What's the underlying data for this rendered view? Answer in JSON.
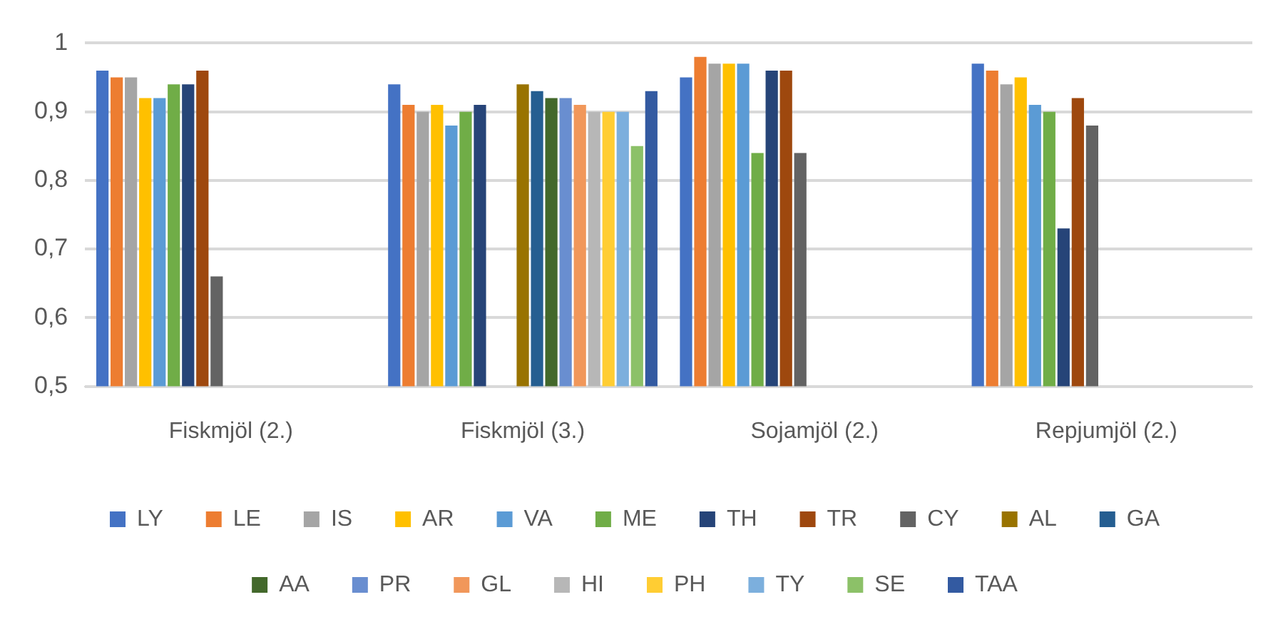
{
  "chart_data": {
    "type": "bar",
    "categories": [
      "Fiskmjöl (2.)",
      "Fiskmjöl (3.)",
      "Sojamjöl (2.)",
      "Repjumjöl (2.)"
    ],
    "ylim": [
      0.5,
      1
    ],
    "yticks": [
      {
        "value": 0.5,
        "label": "0,5"
      },
      {
        "value": 0.6,
        "label": "0,6"
      },
      {
        "value": 0.7,
        "label": "0,7"
      },
      {
        "value": 0.8,
        "label": "0,8"
      },
      {
        "value": 0.9,
        "label": "0,9"
      },
      {
        "value": 1,
        "label": "1"
      }
    ],
    "grid": "y",
    "legend": "bottom",
    "series": [
      {
        "name": "LY",
        "color": "#4472c4",
        "values": [
          0.96,
          0.94,
          0.95,
          0.97
        ]
      },
      {
        "name": "LE",
        "color": "#ed7d31",
        "values": [
          0.95,
          0.91,
          0.98,
          0.96
        ]
      },
      {
        "name": "IS",
        "color": "#a5a5a5",
        "values": [
          0.95,
          0.9,
          0.97,
          0.94
        ]
      },
      {
        "name": "AR",
        "color": "#ffc000",
        "values": [
          0.92,
          0.91,
          0.97,
          0.95
        ]
      },
      {
        "name": "VA",
        "color": "#5b9bd5",
        "values": [
          0.92,
          0.88,
          0.97,
          0.91
        ]
      },
      {
        "name": "ME",
        "color": "#70ad47",
        "values": [
          0.94,
          0.9,
          0.84,
          0.9
        ]
      },
      {
        "name": "TH",
        "color": "#264478",
        "values": [
          0.94,
          0.91,
          0.96,
          0.73
        ]
      },
      {
        "name": "TR",
        "color": "#9e480e",
        "values": [
          0.96,
          null,
          0.96,
          0.92
        ]
      },
      {
        "name": "CY",
        "color": "#636363",
        "values": [
          0.66,
          null,
          0.84,
          0.88
        ]
      },
      {
        "name": "AL",
        "color": "#997300",
        "values": [
          null,
          0.94,
          null,
          null
        ]
      },
      {
        "name": "GA",
        "color": "#255e91",
        "values": [
          null,
          0.93,
          null,
          null
        ]
      },
      {
        "name": "AA",
        "color": "#43682b",
        "values": [
          null,
          0.92,
          null,
          null
        ]
      },
      {
        "name": "PR",
        "color": "#698ed0",
        "values": [
          null,
          0.92,
          null,
          null
        ]
      },
      {
        "name": "GL",
        "color": "#f1975a",
        "values": [
          null,
          0.91,
          null,
          null
        ]
      },
      {
        "name": "HI",
        "color": "#b7b7b7",
        "values": [
          null,
          0.9,
          null,
          null
        ]
      },
      {
        "name": "PH",
        "color": "#ffcd33",
        "values": [
          null,
          0.9,
          null,
          null
        ]
      },
      {
        "name": "TY",
        "color": "#7cafdd",
        "values": [
          null,
          0.9,
          null,
          null
        ]
      },
      {
        "name": "SE",
        "color": "#8cc168",
        "values": [
          null,
          0.85,
          null,
          null
        ]
      },
      {
        "name": "TAA",
        "color": "#335aa1",
        "values": [
          null,
          0.93,
          null,
          null
        ]
      }
    ]
  }
}
